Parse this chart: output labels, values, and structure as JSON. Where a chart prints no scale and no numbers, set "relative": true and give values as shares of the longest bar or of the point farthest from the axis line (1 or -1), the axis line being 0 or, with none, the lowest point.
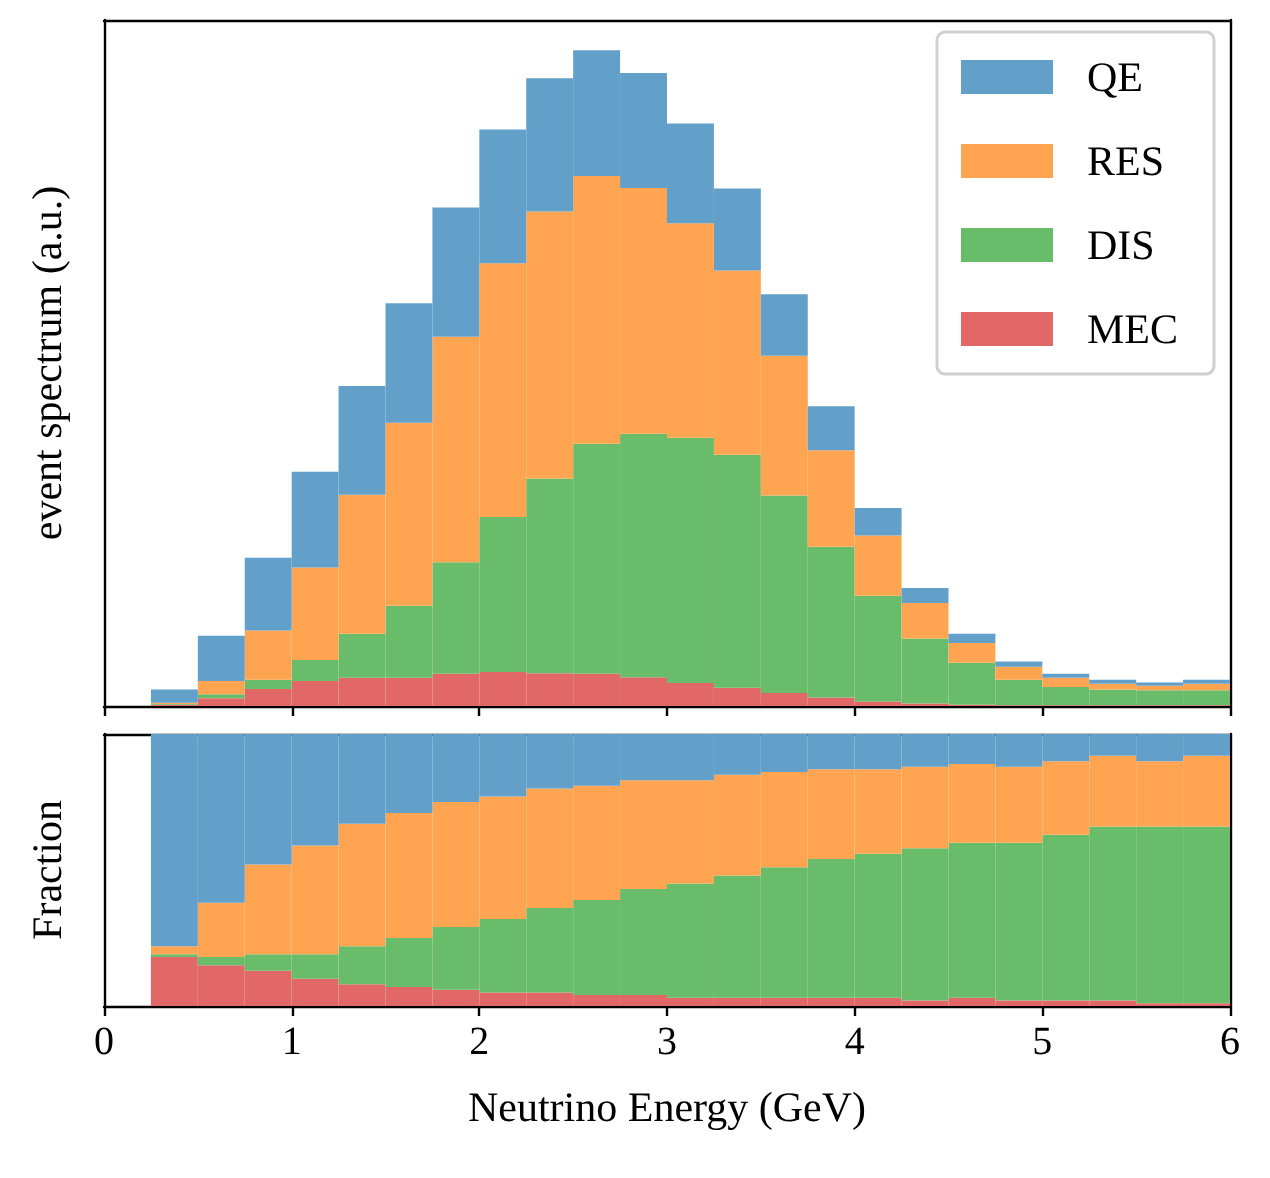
{
  "chart_data": [
    {
      "type": "bar",
      "ylabel": "event spectrum (a.u.)",
      "relative": true,
      "stacked": true,
      "legend": "top right",
      "tick_labels": false,
      "x": [
        0.375,
        0.625,
        0.875,
        1.125,
        1.375,
        1.625,
        1.875,
        2.125,
        2.375,
        2.625,
        2.875,
        3.125,
        3.375,
        3.625,
        3.875,
        4.125,
        4.375,
        4.625,
        4.875,
        5.125,
        5.375,
        5.625,
        5.875
      ],
      "xlim": [
        0,
        6
      ],
      "xticks": [
        0,
        1,
        2,
        3,
        4,
        5,
        6
      ],
      "series": [
        {
          "name": "MEC",
          "color": "#e26868",
          "values": [
            0.002,
            0.012,
            0.026,
            0.038,
            0.043,
            0.043,
            0.049,
            0.052,
            0.05,
            0.049,
            0.044,
            0.035,
            0.028,
            0.02,
            0.013,
            0.007,
            0.004,
            0.002,
            0.001,
            0.001,
            0.001,
            0.001,
            0.001
          ]
        },
        {
          "name": "DIS",
          "color": "#69bc69",
          "values": [
            0.001,
            0.006,
            0.014,
            0.032,
            0.067,
            0.11,
            0.17,
            0.236,
            0.297,
            0.351,
            0.371,
            0.374,
            0.355,
            0.301,
            0.23,
            0.161,
            0.099,
            0.064,
            0.039,
            0.028,
            0.024,
            0.023,
            0.023
          ]
        },
        {
          "name": "RES",
          "color": "#ffa552",
          "values": [
            0.002,
            0.02,
            0.075,
            0.141,
            0.212,
            0.279,
            0.344,
            0.387,
            0.407,
            0.408,
            0.375,
            0.327,
            0.281,
            0.213,
            0.147,
            0.092,
            0.054,
            0.03,
            0.02,
            0.014,
            0.009,
            0.007,
            0.01
          ]
        },
        {
          "name": "QE",
          "color": "#62a0ca",
          "values": [
            0.02,
            0.069,
            0.111,
            0.146,
            0.166,
            0.182,
            0.197,
            0.204,
            0.203,
            0.192,
            0.175,
            0.152,
            0.125,
            0.094,
            0.067,
            0.042,
            0.023,
            0.014,
            0.008,
            0.006,
            0.006,
            0.005,
            0.006
          ]
        }
      ]
    },
    {
      "type": "bar",
      "xlabel": "Neutrino Energy (GeV)",
      "ylabel": "Fraction",
      "relative": true,
      "stacked": true,
      "tick_labels": "x",
      "x": [
        0.375,
        0.625,
        0.875,
        1.125,
        1.375,
        1.625,
        1.875,
        2.125,
        2.375,
        2.625,
        2.875,
        3.125,
        3.375,
        3.625,
        3.875,
        4.125,
        4.375,
        4.625,
        4.875,
        5.125,
        5.375,
        5.625,
        5.875
      ],
      "xlim": [
        0,
        6
      ],
      "xticks": [
        0,
        1,
        2,
        3,
        4,
        5,
        6
      ],
      "series": [
        {
          "color": "#e26868",
          "values": [
            0.18,
            0.15,
            0.13,
            0.1,
            0.08,
            0.07,
            0.06,
            0.05,
            0.05,
            0.04,
            0.04,
            0.03,
            0.03,
            0.03,
            0.03,
            0.03,
            0.02,
            0.03,
            0.02,
            0.02,
            0.02,
            0.01,
            0.01
          ]
        },
        {
          "color": "#69bc69",
          "values": [
            0.01,
            0.03,
            0.06,
            0.09,
            0.14,
            0.18,
            0.23,
            0.27,
            0.31,
            0.35,
            0.39,
            0.42,
            0.45,
            0.48,
            0.51,
            0.53,
            0.56,
            0.57,
            0.58,
            0.61,
            0.64,
            0.65,
            0.65
          ]
        },
        {
          "color": "#ffa552",
          "values": [
            0.03,
            0.2,
            0.33,
            0.4,
            0.45,
            0.46,
            0.46,
            0.45,
            0.44,
            0.42,
            0.4,
            0.38,
            0.37,
            0.35,
            0.33,
            0.31,
            0.3,
            0.29,
            0.28,
            0.27,
            0.26,
            0.24,
            0.26
          ]
        },
        {
          "color": "#62a0ca",
          "values": [
            0.78,
            0.62,
            0.48,
            0.41,
            0.33,
            0.29,
            0.25,
            0.23,
            0.2,
            0.19,
            0.17,
            0.17,
            0.15,
            0.14,
            0.13,
            0.13,
            0.12,
            0.11,
            0.12,
            0.1,
            0.08,
            0.1,
            0.08
          ]
        }
      ]
    }
  ]
}
